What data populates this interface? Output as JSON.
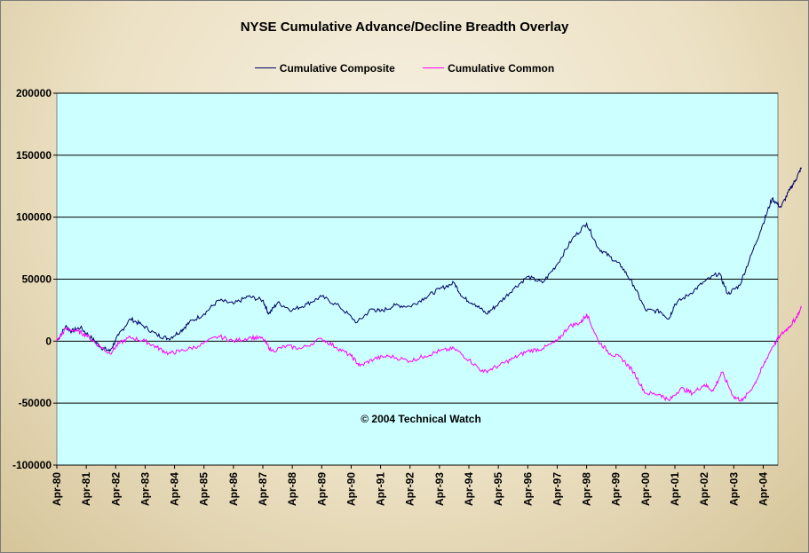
{
  "chart_data": {
    "type": "line",
    "title": "NYSE Cumulative Advance/Decline Breadth Overlay",
    "annotation": "© 2004 Technical Watch",
    "ylim": [
      -100000,
      200000
    ],
    "y_ticks": [
      "200000",
      "150000",
      "100000",
      "50000",
      "0",
      "-50000",
      "-100000"
    ],
    "x_ticks": [
      "Apr-80",
      "Apr-81",
      "Apr-82",
      "Apr-83",
      "Apr-84",
      "Apr-85",
      "Apr-86",
      "Apr-87",
      "Apr-88",
      "Apr-89",
      "Apr-90",
      "Apr-91",
      "Apr-92",
      "Apr-93",
      "Apr-94",
      "Apr-95",
      "Apr-96",
      "Apr-97",
      "Apr-98",
      "Apr-99",
      "Apr-00",
      "Apr-01",
      "Apr-02",
      "Apr-03",
      "Apr-04"
    ],
    "grid": "horizontal",
    "legend_position": "top",
    "plot_background": "#ccffff",
    "series": [
      {
        "name": "Cumulative Composite",
        "color": "#000066",
        "points": [
          [
            0,
            0
          ],
          [
            0.3,
            12000
          ],
          [
            0.5,
            8000
          ],
          [
            0.8,
            11000
          ],
          [
            1.2,
            2000
          ],
          [
            1.5,
            -5000
          ],
          [
            1.8,
            -8000
          ],
          [
            2.1,
            5000
          ],
          [
            2.5,
            18000
          ],
          [
            2.9,
            13000
          ],
          [
            3.4,
            5000
          ],
          [
            3.8,
            2000
          ],
          [
            4.2,
            8000
          ],
          [
            4.5,
            15000
          ],
          [
            5.0,
            22000
          ],
          [
            5.5,
            33000
          ],
          [
            6.0,
            30000
          ],
          [
            6.5,
            36000
          ],
          [
            7.0,
            33000
          ],
          [
            7.2,
            22000
          ],
          [
            7.5,
            31000
          ],
          [
            8.0,
            25000
          ],
          [
            8.5,
            30000
          ],
          [
            9.0,
            36000
          ],
          [
            9.6,
            28000
          ],
          [
            10.2,
            15000
          ],
          [
            10.7,
            26000
          ],
          [
            11.0,
            24000
          ],
          [
            11.5,
            29000
          ],
          [
            12.0,
            28000
          ],
          [
            12.5,
            35000
          ],
          [
            13.0,
            42000
          ],
          [
            13.5,
            47000
          ],
          [
            13.8,
            35000
          ],
          [
            14.2,
            30000
          ],
          [
            14.6,
            22000
          ],
          [
            15.0,
            30000
          ],
          [
            15.5,
            42000
          ],
          [
            16.0,
            52000
          ],
          [
            16.5,
            47000
          ],
          [
            17.0,
            62000
          ],
          [
            17.5,
            82000
          ],
          [
            18.0,
            95000
          ],
          [
            18.4,
            75000
          ],
          [
            18.8,
            68000
          ],
          [
            19.2,
            60000
          ],
          [
            19.6,
            45000
          ],
          [
            20.0,
            25000
          ],
          [
            20.5,
            24000
          ],
          [
            20.8,
            18000
          ],
          [
            21.0,
            30000
          ],
          [
            21.5,
            38000
          ],
          [
            22.0,
            48000
          ],
          [
            22.5,
            55000
          ],
          [
            22.8,
            38000
          ],
          [
            23.2,
            45000
          ],
          [
            23.6,
            70000
          ],
          [
            24.0,
            95000
          ],
          [
            24.3,
            115000
          ],
          [
            24.6,
            108000
          ],
          [
            24.9,
            122000
          ],
          [
            25.1,
            130000
          ],
          [
            25.3,
            140000
          ]
        ]
      },
      {
        "name": "Cumulative Common",
        "color": "#ff00ff",
        "points": [
          [
            0,
            0
          ],
          [
            0.3,
            10000
          ],
          [
            0.7,
            8000
          ],
          [
            1.0,
            5000
          ],
          [
            1.4,
            -3000
          ],
          [
            1.8,
            -10000
          ],
          [
            2.1,
            -2000
          ],
          [
            2.5,
            3000
          ],
          [
            3.0,
            0
          ],
          [
            3.4,
            -5000
          ],
          [
            3.8,
            -10000
          ],
          [
            4.2,
            -8000
          ],
          [
            4.8,
            -4000
          ],
          [
            5.5,
            4000
          ],
          [
            6.0,
            0
          ],
          [
            6.6,
            3000
          ],
          [
            7.0,
            2000
          ],
          [
            7.3,
            -8000
          ],
          [
            7.8,
            -4000
          ],
          [
            8.3,
            -6000
          ],
          [
            9.0,
            2000
          ],
          [
            9.5,
            -5000
          ],
          [
            10.0,
            -12000
          ],
          [
            10.3,
            -20000
          ],
          [
            10.8,
            -14000
          ],
          [
            11.3,
            -12000
          ],
          [
            12.0,
            -16000
          ],
          [
            12.5,
            -12000
          ],
          [
            13.0,
            -8000
          ],
          [
            13.5,
            -6000
          ],
          [
            14.0,
            -15000
          ],
          [
            14.5,
            -25000
          ],
          [
            15.0,
            -20000
          ],
          [
            15.5,
            -14000
          ],
          [
            16.0,
            -8000
          ],
          [
            16.5,
            -6000
          ],
          [
            17.0,
            0
          ],
          [
            17.4,
            12000
          ],
          [
            17.8,
            15000
          ],
          [
            18.0,
            22000
          ],
          [
            18.4,
            0
          ],
          [
            18.8,
            -10000
          ],
          [
            19.2,
            -14000
          ],
          [
            19.6,
            -25000
          ],
          [
            20.0,
            -42000
          ],
          [
            20.5,
            -43000
          ],
          [
            20.8,
            -48000
          ],
          [
            21.2,
            -38000
          ],
          [
            21.6,
            -42000
          ],
          [
            22.0,
            -35000
          ],
          [
            22.3,
            -40000
          ],
          [
            22.6,
            -25000
          ],
          [
            23.0,
            -45000
          ],
          [
            23.3,
            -48000
          ],
          [
            23.7,
            -35000
          ],
          [
            24.0,
            -20000
          ],
          [
            24.3,
            -5000
          ],
          [
            24.6,
            5000
          ],
          [
            24.9,
            12000
          ],
          [
            25.1,
            18000
          ],
          [
            25.3,
            27000
          ]
        ]
      }
    ]
  }
}
